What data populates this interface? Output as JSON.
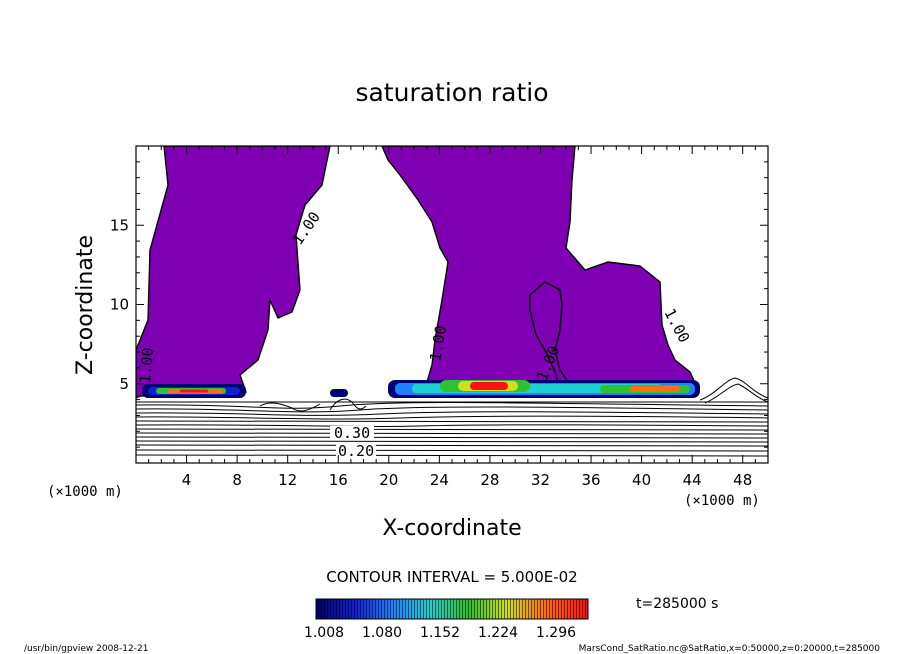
{
  "chart_data": {
    "type": "contour",
    "title": "saturation ratio",
    "xlabel": "X-coordinate",
    "ylabel": "Z-coordinate",
    "x_unit": "(×1000 m)",
    "y_unit": "(×1000 m)",
    "xlim": [
      0,
      50
    ],
    "ylim": [
      0,
      20
    ],
    "xticks": [
      4,
      8,
      12,
      16,
      20,
      24,
      28,
      32,
      36,
      40,
      44,
      48
    ],
    "yticks": [
      5,
      10,
      15
    ],
    "contour_interval_label": "CONTOUR INTERVAL = 5.000E-02",
    "contour_labels": [
      "1.00",
      "1.00",
      "1.00",
      "1.00",
      "1.00",
      "0.30",
      "0.20"
    ],
    "colorbar_ticks": [
      "1.008",
      "1.080",
      "1.152",
      "1.224",
      "1.296"
    ],
    "colorbar_range": [
      1.008,
      1.332
    ],
    "colors": {
      "saturated": "#7f00b2",
      "low": "#000070",
      "high": "#ff1010"
    },
    "time_label": "t=285000 s",
    "footer_left": "/usr/bin/gpview   2008-12-21",
    "footer_right": "MarsCond_SatRatio.nc@SatRatio,x=0:50000,z=0:20000,t=285000"
  }
}
